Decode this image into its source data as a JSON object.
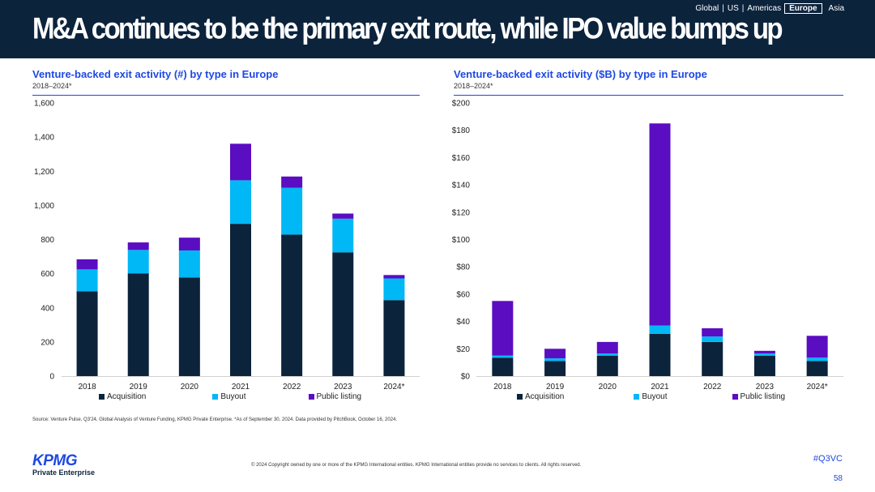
{
  "header": {
    "title": "M&A continues to be the primary exit route, while IPO value bumps up",
    "regions": [
      "Global",
      "US",
      "Americas",
      "Europe",
      "Asia"
    ],
    "active_region": "Europe"
  },
  "colors": {
    "header_bg": "#0c233c",
    "acquisition": "#0c233c",
    "buyout": "#00b8f5",
    "public_listing": "#5b0dc2",
    "accent": "#1e49e2"
  },
  "chart_data": [
    {
      "type": "bar",
      "stacked": true,
      "title": "Venture-backed exit activity (#) by type in Europe",
      "subtitle": "2018–2024*",
      "categories": [
        "2018",
        "2019",
        "2020",
        "2021",
        "2022",
        "2023",
        "2024*"
      ],
      "series": [
        {
          "name": "Acquisition",
          "values": [
            497,
            602,
            577,
            892,
            829,
            725,
            445
          ]
        },
        {
          "name": "Buyout",
          "values": [
            128,
            137,
            159,
            255,
            274,
            197,
            127
          ]
        },
        {
          "name": "Public listing",
          "values": [
            59,
            44,
            75,
            214,
            66,
            30,
            20
          ]
        }
      ],
      "ylim": [
        0,
        1600
      ],
      "yticks": [
        0,
        200,
        400,
        600,
        800,
        1000,
        1200,
        1400,
        1600
      ],
      "ytick_labels": [
        "0",
        "200",
        "400",
        "600",
        "800",
        "1,000",
        "1,200",
        "1,400",
        "1,600"
      ],
      "legend": "bottom"
    },
    {
      "type": "bar",
      "stacked": true,
      "title": "Venture-backed exit activity ($B) by type in Europe",
      "subtitle": "2018–2024*",
      "categories": [
        "2018",
        "2019",
        "2020",
        "2021",
        "2022",
        "2023",
        "2024*"
      ],
      "series": [
        {
          "name": "Acquisition",
          "values": [
            13.5,
            11,
            15,
            31,
            25,
            15,
            11
          ]
        },
        {
          "name": "Buyout",
          "values": [
            1.5,
            2,
            1.5,
            6,
            4,
            1.5,
            2.5
          ]
        },
        {
          "name": "Public listing",
          "values": [
            40,
            7,
            8.5,
            148,
            6,
            2,
            16
          ]
        }
      ],
      "ylim": [
        0,
        200
      ],
      "yticks": [
        0,
        20,
        40,
        60,
        80,
        100,
        120,
        140,
        160,
        180,
        200
      ],
      "ytick_labels": [
        "$0",
        "$20",
        "$40",
        "$60",
        "$80",
        "$100",
        "$120",
        "$140",
        "$160",
        "$180",
        "$200"
      ],
      "legend": "bottom"
    }
  ],
  "source": "Source: Venture Pulse, Q3'24, Global Analysis of Venture Funding, KPMG Private Enterprise. *As of September 30, 2024. Data provided by PitchBook, October 16, 2024.",
  "footer": {
    "logo_text": "KPMG",
    "logo_sub": "Private Enterprise",
    "copyright": "© 2024 Copyright owned by one or more of the KPMG International entities. KPMG International entities provide no services to clients. All rights reserved.",
    "hashtag": "#Q3VC",
    "page_number": "58"
  }
}
